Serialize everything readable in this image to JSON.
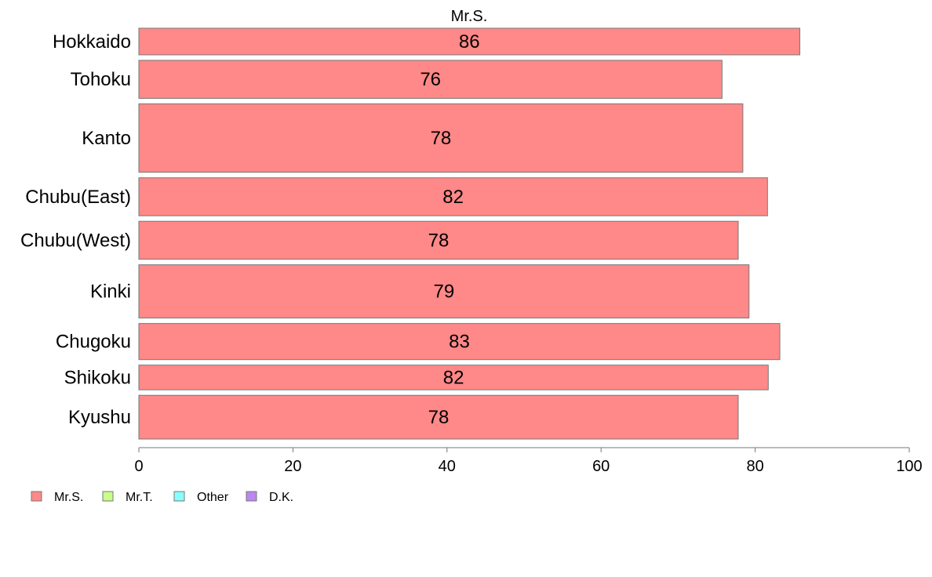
{
  "chart_data": {
    "type": "bar",
    "orientation": "horizontal",
    "title": "Mr.S.",
    "categories": [
      "Hokkaido",
      "Tohoku",
      "Kanto",
      "Chubu(East)",
      "Chubu(West)",
      "Kinki",
      "Chugoku",
      "Shikoku",
      "Kyushu"
    ],
    "category_weights": [
      0.7,
      1.0,
      1.8,
      1.0,
      1.0,
      1.4,
      0.95,
      0.65,
      1.15
    ],
    "series": [
      {
        "name": "Mr.S.",
        "values": [
          85.8,
          75.7,
          78.4,
          81.6,
          77.8,
          79.2,
          83.2,
          81.7,
          77.8
        ]
      }
    ],
    "data_labels": [
      "86",
      "76",
      "78",
      "82",
      "78",
      "79",
      "83",
      "82",
      "78"
    ],
    "xlim": [
      0,
      100
    ],
    "xticks": [
      0,
      20,
      40,
      60,
      80,
      100
    ],
    "xlabel": "",
    "ylabel": "",
    "grid": false,
    "legend_placement": "bottom-left",
    "legend": [
      {
        "label": "Mr.S.",
        "color": "#ff8888"
      },
      {
        "label": "Mr.T.",
        "color": "#c8ff88"
      },
      {
        "label": "Other",
        "color": "#88ffff"
      },
      {
        "label": "D.K.",
        "color": "#bb88ee"
      }
    ],
    "bar_color": "#ff8888",
    "bar_edge_color": "#777777"
  }
}
